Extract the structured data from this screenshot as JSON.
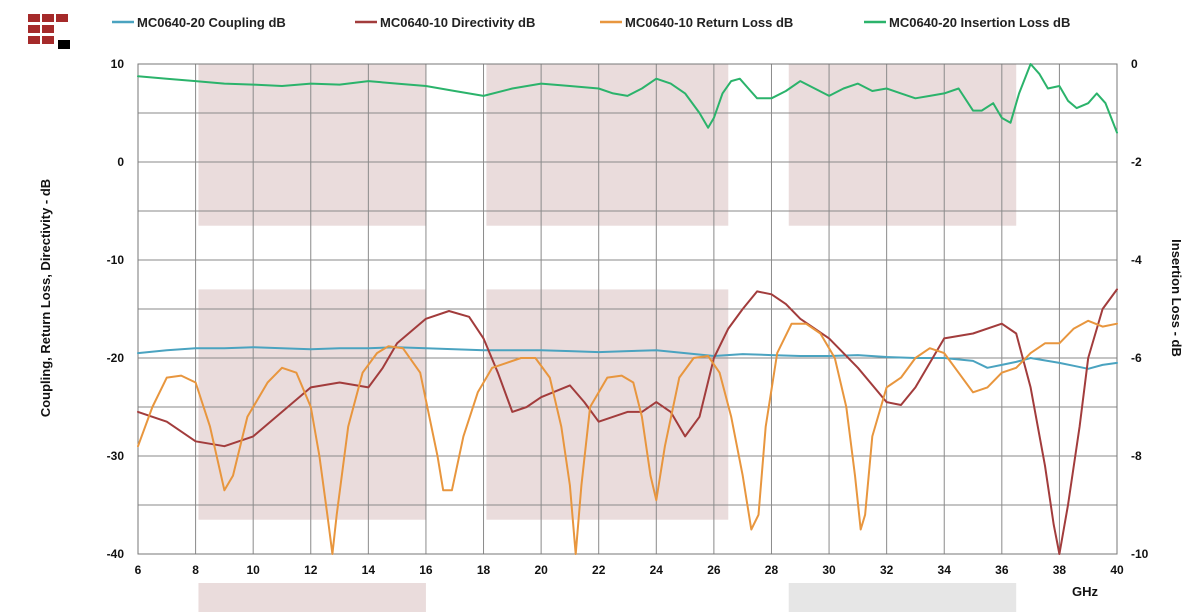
{
  "chart_data": {
    "type": "line",
    "xlabel": "GHz",
    "ylabel": "Coupling, Return Loss, Directivity - dB",
    "y2label": "Insertion Loss - dB",
    "xlim": [
      6,
      40
    ],
    "ylim": [
      -40,
      10
    ],
    "y2lim": [
      -10,
      0
    ],
    "x_ticks": [
      6,
      8,
      10,
      12,
      14,
      16,
      18,
      20,
      22,
      24,
      26,
      28,
      30,
      32,
      34,
      36,
      38,
      40
    ],
    "y_ticks": [
      10,
      0,
      -10,
      -20,
      -30,
      -40
    ],
    "y2_ticks": [
      0,
      -2,
      -4,
      -6,
      -8,
      -10
    ],
    "grid": true,
    "legend_position": "top",
    "band_color": "#eadcdc",
    "lower_band_color": "#e6e6e6",
    "series": [
      {
        "name": "MC0640-20 Coupling dB",
        "axis": "left",
        "color": "#4aa3c0",
        "x": [
          6,
          7,
          8,
          9,
          10,
          11,
          12,
          13,
          14,
          15,
          16,
          17,
          18,
          19,
          20,
          21,
          22,
          23,
          24,
          25,
          26,
          27,
          28,
          29,
          30,
          31,
          32,
          33,
          34,
          35,
          35.5,
          36,
          36.5,
          37,
          38,
          38.5,
          39,
          39.5,
          40
        ],
        "y": [
          -19.5,
          -19.2,
          -19.0,
          -19.0,
          -18.9,
          -19.0,
          -19.1,
          -19.0,
          -19.0,
          -18.9,
          -19.0,
          -19.1,
          -19.2,
          -19.2,
          -19.2,
          -19.3,
          -19.4,
          -19.3,
          -19.2,
          -19.5,
          -19.8,
          -19.6,
          -19.7,
          -19.8,
          -19.8,
          -19.7,
          -19.9,
          -20.0,
          -20.0,
          -20.3,
          -21.0,
          -20.7,
          -20.4,
          -20.0,
          -20.5,
          -20.8,
          -21.1,
          -20.7,
          -20.5
        ]
      },
      {
        "name": "MC0640-10 Directivity dB",
        "axis": "left",
        "color": "#a23c3c",
        "x": [
          6,
          7,
          8,
          9,
          10,
          11,
          12,
          13,
          14,
          14.5,
          15,
          16,
          16.8,
          17.5,
          18,
          18.5,
          19,
          19.5,
          20,
          21,
          21.5,
          22,
          22.5,
          23,
          23.5,
          24,
          24.5,
          25,
          25.5,
          26,
          26.5,
          27,
          27.5,
          28,
          28.5,
          29,
          30,
          31,
          32,
          32.5,
          33,
          34,
          35,
          36,
          36.5,
          37,
          37.5,
          37.8,
          38,
          38.3,
          38.7,
          39,
          39.5,
          40
        ],
        "y": [
          -25.5,
          -26.5,
          -28.5,
          -29.0,
          -28.0,
          -25.5,
          -23.0,
          -22.5,
          -23.0,
          -21.0,
          -18.5,
          -16.0,
          -15.2,
          -15.8,
          -18.0,
          -21.5,
          -25.5,
          -25.0,
          -24.0,
          -22.8,
          -24.5,
          -26.5,
          -26.0,
          -25.5,
          -25.5,
          -24.5,
          -25.5,
          -28.0,
          -26.0,
          -20.0,
          -17.0,
          -15.0,
          -13.2,
          -13.5,
          -14.5,
          -16.0,
          -18.0,
          -21.0,
          -24.5,
          -24.8,
          -23.0,
          -18.0,
          -17.5,
          -16.5,
          -17.5,
          -23.0,
          -31.0,
          -37.0,
          -40.0,
          -35.0,
          -27.0,
          -20.0,
          -15.0,
          -13.0
        ]
      },
      {
        "name": "MC0640-10 Return Loss dB",
        "axis": "left",
        "color": "#e8963e",
        "x": [
          6,
          6.5,
          7,
          7.5,
          8,
          8.5,
          9,
          9.3,
          9.8,
          10.5,
          11,
          11.5,
          12,
          12.3,
          12.6,
          12.75,
          12.9,
          13.3,
          13.8,
          14.3,
          14.7,
          15.2,
          15.8,
          16.4,
          16.6,
          16.9,
          17.3,
          17.8,
          18.3,
          18.8,
          19.3,
          19.8,
          20.3,
          20.7,
          21,
          21.2,
          21.4,
          21.7,
          22.3,
          22.8,
          23.2,
          23.5,
          23.8,
          24,
          24.3,
          24.8,
          25.3,
          25.8,
          26.2,
          26.6,
          27,
          27.3,
          27.55,
          27.8,
          28.2,
          28.7,
          29.2,
          29.7,
          30.2,
          30.6,
          30.9,
          31.1,
          31.25,
          31.5,
          32,
          32.5,
          33,
          33.5,
          34,
          34.5,
          35,
          35.5,
          36,
          36.5,
          37,
          37.5,
          38,
          38.5,
          39,
          39.5,
          40
        ],
        "y": [
          -29.0,
          -25.0,
          -22.0,
          -21.8,
          -22.5,
          -27.0,
          -33.5,
          -32.0,
          -26.0,
          -22.5,
          -21.0,
          -21.5,
          -25.0,
          -30.0,
          -36.5,
          -40.0,
          -36.0,
          -27.0,
          -21.5,
          -19.5,
          -18.8,
          -19.0,
          -21.5,
          -30.0,
          -33.5,
          -33.5,
          -28.0,
          -23.5,
          -21.0,
          -20.5,
          -20.0,
          -20.0,
          -22.0,
          -27.0,
          -33.0,
          -40.0,
          -33.0,
          -25.0,
          -22.0,
          -21.8,
          -22.5,
          -26.0,
          -32.0,
          -34.5,
          -29.0,
          -22.0,
          -20.0,
          -19.8,
          -21.5,
          -26.0,
          -32.0,
          -37.5,
          -36.0,
          -27.0,
          -19.5,
          -16.5,
          -16.5,
          -17.5,
          -20.0,
          -25.0,
          -32.0,
          -37.5,
          -36.0,
          -28.0,
          -23.0,
          -22.0,
          -20.0,
          -19.0,
          -19.5,
          -21.5,
          -23.5,
          -23.0,
          -21.5,
          -21.0,
          -19.5,
          -18.5,
          -18.5,
          -17.0,
          -16.2,
          -16.8,
          -16.5
        ]
      },
      {
        "name": "MC0640-20 Insertion Loss dB",
        "axis": "right",
        "color": "#2bb36b",
        "x": [
          6,
          7,
          8,
          9,
          10,
          11,
          12,
          13,
          14,
          15,
          16,
          17,
          18,
          19,
          20,
          21,
          22,
          22.5,
          23,
          23.5,
          24,
          24.5,
          25,
          25.5,
          25.8,
          26,
          26.3,
          26.6,
          26.9,
          27.2,
          27.5,
          28,
          28.5,
          29,
          29.5,
          30,
          30.5,
          31,
          31.5,
          32,
          32.5,
          33,
          33.5,
          34,
          34.5,
          35,
          35.3,
          35.7,
          36,
          36.3,
          36.6,
          37,
          37.3,
          37.6,
          38,
          38.3,
          38.6,
          39,
          39.3,
          39.6,
          40
        ],
        "y": [
          -0.25,
          -0.3,
          -0.35,
          -0.4,
          -0.42,
          -0.45,
          -0.4,
          -0.42,
          -0.35,
          -0.4,
          -0.45,
          -0.55,
          -0.65,
          -0.5,
          -0.4,
          -0.45,
          -0.5,
          -0.6,
          -0.65,
          -0.5,
          -0.3,
          -0.4,
          -0.6,
          -1.0,
          -1.3,
          -1.1,
          -0.6,
          -0.35,
          -0.3,
          -0.5,
          -0.7,
          -0.7,
          -0.55,
          -0.35,
          -0.5,
          -0.65,
          -0.5,
          -0.4,
          -0.55,
          -0.5,
          -0.6,
          -0.7,
          -0.65,
          -0.6,
          -0.5,
          -0.95,
          -0.95,
          -0.8,
          -1.1,
          -1.2,
          -0.6,
          0.0,
          -0.2,
          -0.5,
          -0.45,
          -0.75,
          -0.9,
          -0.8,
          -0.6,
          -0.8,
          -1.4
        ]
      }
    ]
  }
}
